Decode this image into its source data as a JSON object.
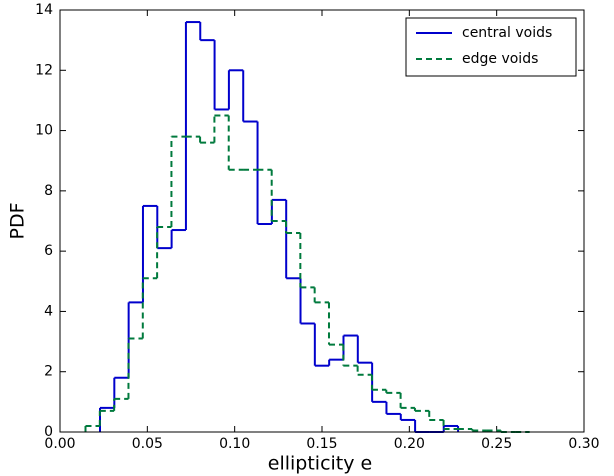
{
  "chart_data": {
    "type": "histogram",
    "xlabel": "ellipticity e",
    "ylabel": "PDF",
    "xlim": [
      0,
      0.3
    ],
    "ylim": [
      0,
      14
    ],
    "xticks": [
      {
        "value": 0,
        "label": "0.00"
      },
      {
        "value": 0.05,
        "label": "0.05"
      },
      {
        "value": 0.1,
        "label": "0.10"
      },
      {
        "value": 0.15,
        "label": "0.15"
      },
      {
        "value": 0.2,
        "label": "0.20"
      },
      {
        "value": 0.25,
        "label": "0.25"
      },
      {
        "value": 0.3,
        "label": "0.30"
      }
    ],
    "yticks": [
      0,
      2,
      4,
      6,
      8,
      10,
      12,
      14
    ],
    "legend": "upper right",
    "series": [
      {
        "name": "central voids",
        "color": "#0000cc",
        "style": "solid",
        "bins": [
          0.0229,
          0.0311,
          0.0393,
          0.0475,
          0.0557,
          0.0639,
          0.0721,
          0.0803,
          0.0885,
          0.0967,
          0.1049,
          0.1131,
          0.1213,
          0.1295,
          0.1377,
          0.1459,
          0.1541,
          0.1623,
          0.1705,
          0.1787,
          0.1869,
          0.1951,
          0.2033,
          0.2115,
          0.2197,
          0.2279
        ],
        "values": [
          0.8,
          1.8,
          4.3,
          7.5,
          6.1,
          6.7,
          13.6,
          13.0,
          10.7,
          12.0,
          10.3,
          6.9,
          7.7,
          5.1,
          3.6,
          2.2,
          2.4,
          3.2,
          2.3,
          1.0,
          0.6,
          0.4,
          0,
          0,
          0.2
        ]
      },
      {
        "name": "edge voids",
        "color": "#007a3d",
        "style": "dashed",
        "bins": [
          0.0146,
          0.0228,
          0.031,
          0.0392,
          0.0474,
          0.0556,
          0.0638,
          0.072,
          0.0802,
          0.0884,
          0.0966,
          0.1048,
          0.113,
          0.1212,
          0.1294,
          0.1376,
          0.1458,
          0.154,
          0.1622,
          0.1704,
          0.1786,
          0.1868,
          0.195,
          0.2032,
          0.2114,
          0.2196,
          0.2278,
          0.236,
          0.2442,
          0.2524,
          0.2606,
          0.2688
        ],
        "values": [
          0.2,
          0.7,
          1.1,
          3.1,
          5.1,
          6.8,
          9.8,
          9.8,
          9.6,
          10.5,
          8.7,
          8.7,
          8.7,
          7.0,
          6.6,
          4.8,
          4.3,
          2.9,
          2.2,
          1.9,
          1.4,
          1.3,
          0.8,
          0.7,
          0.4,
          0.1,
          0.1,
          0.05,
          0.05,
          0,
          0
        ]
      }
    ]
  }
}
